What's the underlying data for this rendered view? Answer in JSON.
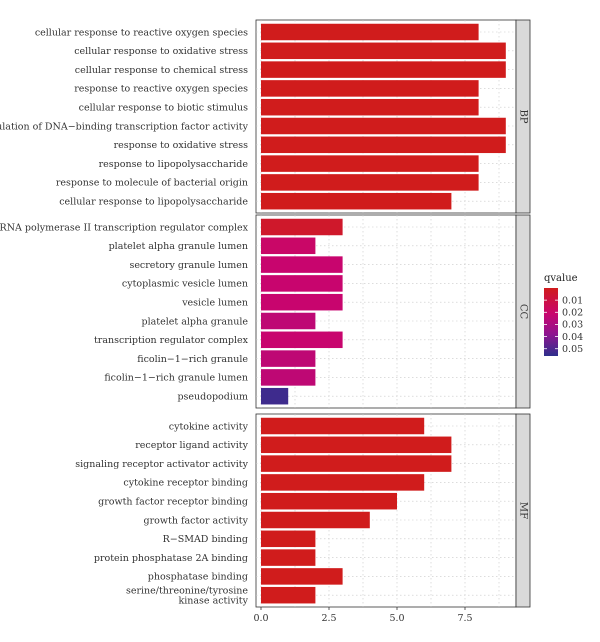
{
  "chart_data": {
    "type": "bar",
    "orientation": "horizontal",
    "xlim": [
      0,
      9.5
    ],
    "x_ticks": [
      0.0,
      2.5,
      5.0,
      7.5
    ],
    "x_tick_labels": [
      "0.0",
      "2.5",
      "5.0",
      "7.5"
    ],
    "grid": true,
    "legend_position": "right",
    "legend": {
      "title": "qvalue",
      "ticks": [
        0.01,
        0.02,
        0.03,
        0.04,
        0.05
      ],
      "tick_labels": [
        "0.01",
        "0.02",
        "0.03",
        "0.04",
        "0.05"
      ],
      "range": [
        0.0,
        0.056
      ],
      "colors": {
        "low": "#cc1f1f",
        "mid": "#c4047a",
        "high": "#302e8c"
      }
    },
    "facets": [
      {
        "label": "BP",
        "bars": [
          {
            "category": "cellular response to reactive oxygen species",
            "value": 8,
            "qvalue": 0.003
          },
          {
            "category": "cellular response to oxidative stress",
            "value": 9,
            "qvalue": 0.002
          },
          {
            "category": "cellular response to chemical stress",
            "value": 9,
            "qvalue": 0.002
          },
          {
            "category": "response to reactive oxygen species",
            "value": 8,
            "qvalue": 0.003
          },
          {
            "category": "cellular response to biotic stimulus",
            "value": 8,
            "qvalue": 0.003
          },
          {
            "category": "regulation of DNA−binding transcription factor activity",
            "value": 9,
            "qvalue": 0.002
          },
          {
            "category": "response to oxidative stress",
            "value": 9,
            "qvalue": 0.002
          },
          {
            "category": "response to lipopolysaccharide",
            "value": 8,
            "qvalue": 0.003
          },
          {
            "category": "response to molecule of bacterial origin",
            "value": 8,
            "qvalue": 0.003
          },
          {
            "category": "cellular response to lipopolysaccharide",
            "value": 7,
            "qvalue": 0.003
          }
        ]
      },
      {
        "label": "CC",
        "bars": [
          {
            "category": "RNA polymerase II transcription regulator complex",
            "value": 3,
            "qvalue": 0.012
          },
          {
            "category": "platelet alpha granule lumen",
            "value": 2,
            "qvalue": 0.02
          },
          {
            "category": "secretory granule lumen",
            "value": 3,
            "qvalue": 0.021
          },
          {
            "category": "cytoplasmic vesicle lumen",
            "value": 3,
            "qvalue": 0.021
          },
          {
            "category": "vesicle lumen",
            "value": 3,
            "qvalue": 0.021
          },
          {
            "category": "platelet alpha granule",
            "value": 2,
            "qvalue": 0.024
          },
          {
            "category": "transcription regulator complex",
            "value": 3,
            "qvalue": 0.021
          },
          {
            "category": "ficolin−1−rich granule",
            "value": 2,
            "qvalue": 0.024
          },
          {
            "category": "ficolin−1−rich granule lumen",
            "value": 2,
            "qvalue": 0.024
          },
          {
            "category": "pseudopodium",
            "value": 1,
            "qvalue": 0.053
          }
        ]
      },
      {
        "label": "MF",
        "bars": [
          {
            "category": "cytokine activity",
            "value": 6,
            "qvalue": 0.003
          },
          {
            "category": "receptor ligand activity",
            "value": 7,
            "qvalue": 0.003
          },
          {
            "category": "signaling receptor activator activity",
            "value": 7,
            "qvalue": 0.003
          },
          {
            "category": "cytokine receptor binding",
            "value": 6,
            "qvalue": 0.003
          },
          {
            "category": "growth factor receptor binding",
            "value": 5,
            "qvalue": 0.003
          },
          {
            "category": "growth factor activity",
            "value": 4,
            "qvalue": 0.003
          },
          {
            "category": "R−SMAD binding",
            "value": 2,
            "qvalue": 0.003
          },
          {
            "category": "protein phosphatase 2A binding",
            "value": 2,
            "qvalue": 0.003
          },
          {
            "category": "phosphatase binding",
            "value": 3,
            "qvalue": 0.003
          },
          {
            "category": "serine/threonine/tyrosine kinase activity",
            "category_lines": [
              "serine/threonine/tyrosine",
              "kinase activity"
            ],
            "value": 2,
            "qvalue": 0.003
          }
        ]
      }
    ]
  }
}
